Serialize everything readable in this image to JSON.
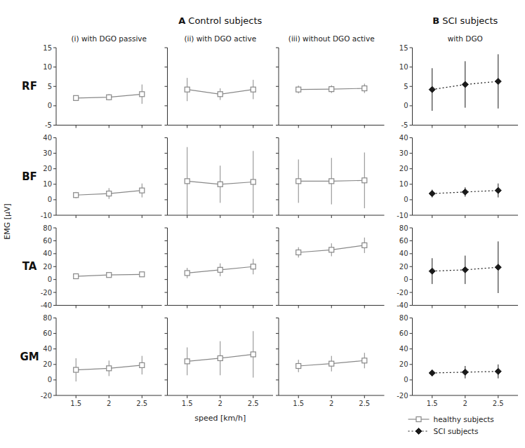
{
  "chart_data": [
    {
      "type": "line",
      "title": "(i) with DGO passive",
      "subtitle": "A Control subjects",
      "ylabel": "EMG [µV]",
      "annotations": [
        "RF"
      ],
      "tick_labels": "y",
      "x": [
        1.5,
        2.0,
        2.5
      ],
      "xlim": [
        1.2,
        2.8
      ],
      "xticks": [
        1.5,
        2,
        2.5
      ],
      "ylim": [
        -5,
        15
      ],
      "yticks": [
        -5,
        0,
        5,
        10,
        15
      ],
      "series": [
        {
          "name": "healthy subjects",
          "color": "#888888",
          "marker": "square",
          "line_style": "solid",
          "values": [
            2.0,
            2.2,
            3.0
          ],
          "err": [
            0.5,
            0.8,
            2.5
          ]
        }
      ]
    },
    {
      "type": "line",
      "title": "(ii) with DGO active",
      "tick_labels": false,
      "x": [
        1.5,
        2.0,
        2.5
      ],
      "xlim": [
        1.2,
        2.8
      ],
      "xticks": [
        1.5,
        2,
        2.5
      ],
      "ylim": [
        -5,
        15
      ],
      "yticks": [
        -5,
        0,
        5,
        10,
        15
      ],
      "series": [
        {
          "name": "healthy subjects",
          "color": "#888888",
          "marker": "square",
          "line_style": "solid",
          "values": [
            4.2,
            3.0,
            4.2
          ],
          "err": [
            3.0,
            1.5,
            2.5
          ]
        }
      ]
    },
    {
      "type": "line",
      "title": "(iii) without DGO active",
      "tick_labels": false,
      "x": [
        1.5,
        2.0,
        2.5
      ],
      "xlim": [
        1.2,
        2.8
      ],
      "xticks": [
        1.5,
        2,
        2.5
      ],
      "ylim": [
        -5,
        15
      ],
      "yticks": [
        -5,
        0,
        5,
        10,
        15
      ],
      "series": [
        {
          "name": "healthy subjects",
          "color": "#888888",
          "marker": "square",
          "line_style": "solid",
          "values": [
            4.2,
            4.3,
            4.5
          ],
          "err": [
            1.0,
            1.0,
            1.2
          ]
        }
      ]
    },
    {
      "type": "line",
      "title": "with DGO",
      "subtitle": "B SCI subjects",
      "tick_labels": "y",
      "x": [
        1.5,
        2.0,
        2.5
      ],
      "xlim": [
        1.2,
        2.8
      ],
      "xticks": [
        1.5,
        2,
        2.5
      ],
      "ylim": [
        -5,
        15
      ],
      "yticks": [
        -5,
        0,
        5,
        10,
        15
      ],
      "series": [
        {
          "name": "SCI subjects",
          "color": "#1a1a1a",
          "marker": "diamond",
          "line_style": "dotted",
          "values": [
            4.2,
            5.5,
            6.3
          ],
          "err": [
            5.5,
            6.0,
            7.0
          ]
        }
      ]
    },
    {
      "type": "line",
      "annotations": [
        "BF"
      ],
      "tick_labels": "y",
      "x": [
        1.5,
        2.0,
        2.5
      ],
      "xlim": [
        1.2,
        2.8
      ],
      "xticks": [
        1.5,
        2,
        2.5
      ],
      "ylim": [
        -10,
        40
      ],
      "yticks": [
        -10,
        0,
        10,
        20,
        30,
        40
      ],
      "series": [
        {
          "name": "healthy subjects",
          "color": "#888888",
          "marker": "square",
          "line_style": "solid",
          "values": [
            3.0,
            4.0,
            6.0
          ],
          "err": [
            2.0,
            3.5,
            4.5
          ]
        }
      ]
    },
    {
      "type": "line",
      "tick_labels": false,
      "x": [
        1.5,
        2.0,
        2.5
      ],
      "xlim": [
        1.2,
        2.8
      ],
      "xticks": [
        1.5,
        2,
        2.5
      ],
      "ylim": [
        -10,
        40
      ],
      "yticks": [
        -10,
        0,
        10,
        20,
        30,
        40
      ],
      "series": [
        {
          "name": "healthy subjects",
          "color": "#888888",
          "marker": "square",
          "line_style": "solid",
          "values": [
            12.0,
            10.0,
            11.5
          ],
          "err": [
            22.0,
            12.0,
            20.0
          ]
        }
      ]
    },
    {
      "type": "line",
      "tick_labels": false,
      "x": [
        1.5,
        2.0,
        2.5
      ],
      "xlim": [
        1.2,
        2.8
      ],
      "xticks": [
        1.5,
        2,
        2.5
      ],
      "ylim": [
        -10,
        40
      ],
      "yticks": [
        -10,
        0,
        10,
        20,
        30,
        40
      ],
      "series": [
        {
          "name": "healthy subjects",
          "color": "#888888",
          "marker": "square",
          "line_style": "solid",
          "values": [
            12.0,
            12.0,
            12.5
          ],
          "err": [
            14.0,
            15.0,
            18.0
          ]
        }
      ]
    },
    {
      "type": "line",
      "tick_labels": "y",
      "x": [
        1.5,
        2.0,
        2.5
      ],
      "xlim": [
        1.2,
        2.8
      ],
      "xticks": [
        1.5,
        2,
        2.5
      ],
      "ylim": [
        -10,
        40
      ],
      "yticks": [
        -10,
        0,
        10,
        20,
        30,
        40
      ],
      "series": [
        {
          "name": "SCI subjects",
          "color": "#1a1a1a",
          "marker": "diamond",
          "line_style": "dotted",
          "values": [
            4.0,
            5.0,
            6.0
          ],
          "err": [
            2.5,
            3.0,
            4.5
          ]
        }
      ]
    },
    {
      "type": "line",
      "annotations": [
        "TA"
      ],
      "tick_labels": "y",
      "x": [
        1.5,
        2.0,
        2.5
      ],
      "xlim": [
        1.2,
        2.8
      ],
      "xticks": [
        1.5,
        2,
        2.5
      ],
      "ylim": [
        -40,
        80
      ],
      "yticks": [
        -40,
        -20,
        0,
        20,
        40,
        60,
        80
      ],
      "series": [
        {
          "name": "healthy subjects",
          "color": "#888888",
          "marker": "square",
          "line_style": "solid",
          "values": [
            5.0,
            7.0,
            8.0
          ],
          "err": [
            2.0,
            3.0,
            3.5
          ]
        }
      ]
    },
    {
      "type": "line",
      "tick_labels": false,
      "x": [
        1.5,
        2.0,
        2.5
      ],
      "xlim": [
        1.2,
        2.8
      ],
      "xticks": [
        1.5,
        2,
        2.5
      ],
      "ylim": [
        -40,
        80
      ],
      "yticks": [
        -40,
        -20,
        0,
        20,
        40,
        60,
        80
      ],
      "series": [
        {
          "name": "healthy subjects",
          "color": "#888888",
          "marker": "square",
          "line_style": "solid",
          "values": [
            10.0,
            15.0,
            20.0
          ],
          "err": [
            8.0,
            10.0,
            12.0
          ]
        }
      ]
    },
    {
      "type": "line",
      "tick_labels": false,
      "x": [
        1.5,
        2.0,
        2.5
      ],
      "xlim": [
        1.2,
        2.8
      ],
      "xticks": [
        1.5,
        2,
        2.5
      ],
      "ylim": [
        -40,
        80
      ],
      "yticks": [
        -40,
        -20,
        0,
        20,
        40,
        60,
        80
      ],
      "series": [
        {
          "name": "healthy subjects",
          "color": "#888888",
          "marker": "square",
          "line_style": "solid",
          "values": [
            42.0,
            46.0,
            53.0
          ],
          "err": [
            8.0,
            10.0,
            12.0
          ]
        }
      ]
    },
    {
      "type": "line",
      "tick_labels": "y",
      "x": [
        1.5,
        2.0,
        2.5
      ],
      "xlim": [
        1.2,
        2.8
      ],
      "xticks": [
        1.5,
        2,
        2.5
      ],
      "ylim": [
        -40,
        80
      ],
      "yticks": [
        -40,
        -20,
        0,
        20,
        40,
        60,
        80
      ],
      "series": [
        {
          "name": "SCI subjects",
          "color": "#1a1a1a",
          "marker": "diamond",
          "line_style": "dotted",
          "values": [
            13.0,
            15.0,
            19.0
          ],
          "err": [
            20.0,
            22.0,
            40.0
          ]
        }
      ]
    },
    {
      "type": "line",
      "annotations": [
        "GM"
      ],
      "xlabel": "speed [km/h]",
      "x": [
        1.5,
        2.0,
        2.5
      ],
      "xlim": [
        1.2,
        2.8
      ],
      "xticks": [
        1.5,
        2,
        2.5
      ],
      "ylim": [
        -20,
        80
      ],
      "yticks": [
        -20,
        0,
        20,
        40,
        60,
        80
      ],
      "series": [
        {
          "name": "healthy subjects",
          "color": "#888888",
          "marker": "square",
          "line_style": "solid",
          "values": [
            13.0,
            15.0,
            19.0
          ],
          "err": [
            15.0,
            10.0,
            12.0
          ]
        }
      ]
    },
    {
      "type": "line",
      "tick_labels": "x",
      "x": [
        1.5,
        2.0,
        2.5
      ],
      "xlim": [
        1.2,
        2.8
      ],
      "xticks": [
        1.5,
        2,
        2.5
      ],
      "ylim": [
        -20,
        80
      ],
      "yticks": [
        -20,
        0,
        20,
        40,
        60,
        80
      ],
      "series": [
        {
          "name": "healthy subjects",
          "color": "#888888",
          "marker": "square",
          "line_style": "solid",
          "values": [
            24.0,
            28.0,
            33.0
          ],
          "err": [
            18.0,
            22.0,
            30.0
          ]
        }
      ]
    },
    {
      "type": "line",
      "tick_labels": "x",
      "x": [
        1.5,
        2.0,
        2.5
      ],
      "xlim": [
        1.2,
        2.8
      ],
      "xticks": [
        1.5,
        2,
        2.5
      ],
      "ylim": [
        -20,
        80
      ],
      "yticks": [
        -20,
        0,
        20,
        40,
        60,
        80
      ],
      "series": [
        {
          "name": "healthy subjects",
          "color": "#888888",
          "marker": "square",
          "line_style": "solid",
          "values": [
            18.0,
            21.0,
            25.0
          ],
          "err": [
            8.0,
            10.0,
            10.0
          ]
        }
      ]
    },
    {
      "type": "line",
      "legend": "below",
      "x": [
        1.5,
        2.0,
        2.5
      ],
      "xlim": [
        1.2,
        2.8
      ],
      "xticks": [
        1.5,
        2,
        2.5
      ],
      "ylim": [
        -20,
        80
      ],
      "yticks": [
        -20,
        0,
        20,
        40,
        60,
        80
      ],
      "series": [
        {
          "name": "SCI subjects",
          "color": "#1a1a1a",
          "marker": "diamond",
          "line_style": "dotted",
          "values": [
            9.0,
            10.0,
            11.0
          ],
          "err": [
            4.0,
            8.0,
            9.0
          ]
        }
      ]
    }
  ]
}
